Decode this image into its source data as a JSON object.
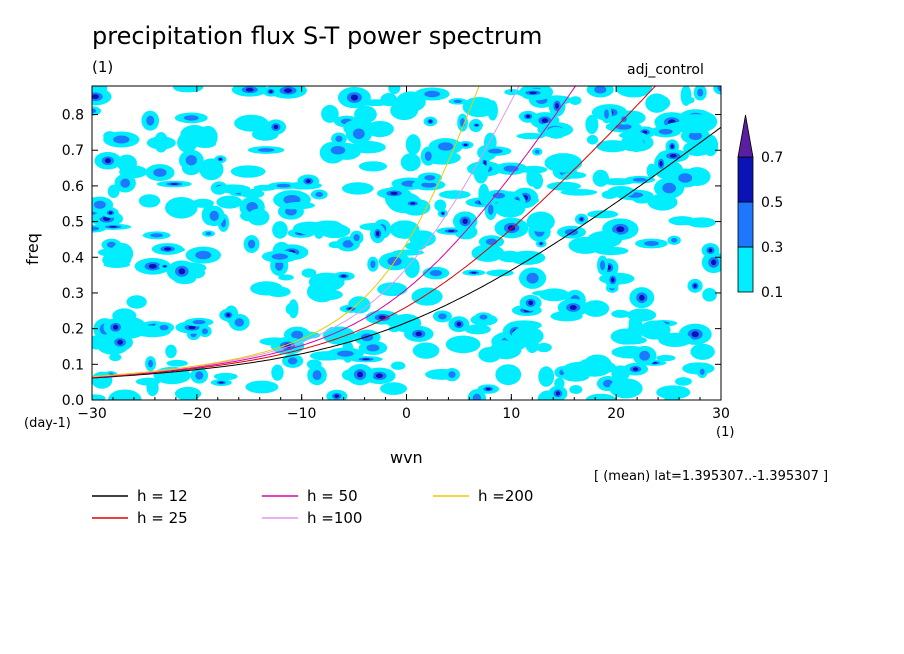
{
  "header": {
    "title": "precipitation flux S-T power spectrum",
    "title_unit": "(1)",
    "subtitle_right": "adj_control"
  },
  "footer": {
    "mean_note": "[ (mean) lat=1.395307..-1.395307 ]"
  },
  "chart_data": {
    "type": "heatmap",
    "title": "precipitation flux S-T power spectrum",
    "xlabel": "wvn",
    "ylabel": "freq",
    "x_unit": "(1)",
    "y_unit": "(day-1)",
    "xlim": [
      -30,
      30
    ],
    "ylim": [
      0,
      0.88
    ],
    "x_ticks": [
      -30,
      -20,
      -10,
      0,
      10,
      20,
      30
    ],
    "y_ticks": [
      0.0,
      0.1,
      0.2,
      0.3,
      0.4,
      0.5,
      0.6,
      0.7,
      0.8
    ],
    "x_tick_labels": [
      "−30",
      "−20",
      "−10",
      "0",
      "10",
      "20",
      "30"
    ],
    "y_tick_labels": [
      "0.0",
      "0.1",
      "0.2",
      "0.3",
      "0.4",
      "0.5",
      "0.6",
      "0.7",
      "0.8"
    ],
    "grid": false,
    "colorbar": {
      "levels": [
        0.1,
        0.3,
        0.5,
        0.7
      ],
      "labels": [
        "0.1",
        "0.3",
        "0.5",
        "0.7"
      ],
      "colors": [
        "#00eeff",
        "#1e78ff",
        "#0a14b4",
        "#5a1ea0"
      ],
      "extend": "max"
    },
    "dispersion_curves": [
      {
        "name": "h = 12",
        "h": 12,
        "color": "#000000"
      },
      {
        "name": "h = 25",
        "h": 25,
        "color": "#e00000"
      },
      {
        "name": "h = 50",
        "h": 50,
        "color": "#e000a0"
      },
      {
        "name": "h =100",
        "h": 100,
        "color": "#dd99ee"
      },
      {
        "name": "h =200",
        "h": 200,
        "color": "#f0c800"
      }
    ],
    "legend_placement": "bottom-left"
  }
}
